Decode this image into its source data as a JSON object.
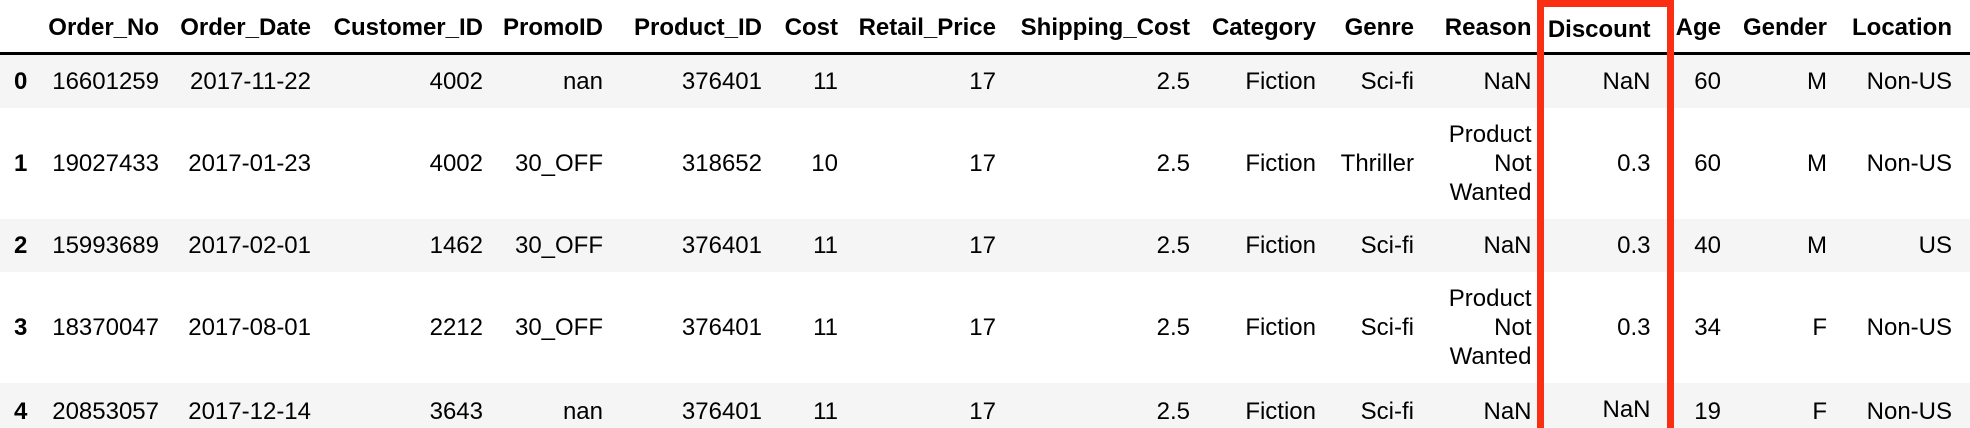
{
  "table": {
    "index_header": "",
    "columns": [
      "Order_No",
      "Order_Date",
      "Customer_ID",
      "PromoID",
      "Product_ID",
      "Cost",
      "Retail_Price",
      "Shipping_Cost",
      "Category",
      "Genre",
      "Reason",
      "Discount",
      "Age",
      "Gender",
      "Location"
    ],
    "rows": [
      {
        "index": "0",
        "cells": [
          "16601259",
          "2017-11-22",
          "4002",
          "nan",
          "376401",
          "11",
          "17",
          "2.5",
          "Fiction",
          "Sci-fi",
          "NaN",
          "NaN",
          "60",
          "M",
          "Non-US"
        ]
      },
      {
        "index": "1",
        "cells": [
          "19027433",
          "2017-01-23",
          "4002",
          "30_OFF",
          "318652",
          "10",
          "17",
          "2.5",
          "Fiction",
          "Thriller",
          "Product Not Wanted",
          "0.3",
          "60",
          "M",
          "Non-US"
        ]
      },
      {
        "index": "2",
        "cells": [
          "15993689",
          "2017-02-01",
          "1462",
          "30_OFF",
          "376401",
          "11",
          "17",
          "2.5",
          "Fiction",
          "Sci-fi",
          "NaN",
          "0.3",
          "40",
          "M",
          "US"
        ]
      },
      {
        "index": "3",
        "cells": [
          "18370047",
          "2017-08-01",
          "2212",
          "30_OFF",
          "376401",
          "11",
          "17",
          "2.5",
          "Fiction",
          "Sci-fi",
          "Product Not Wanted",
          "0.3",
          "34",
          "F",
          "Non-US"
        ]
      },
      {
        "index": "4",
        "cells": [
          "20853057",
          "2017-12-14",
          "3643",
          "nan",
          "376401",
          "11",
          "17",
          "2.5",
          "Fiction",
          "Sci-fi",
          "NaN",
          "NaN",
          "19",
          "F",
          "Non-US"
        ]
      }
    ],
    "highlight": {
      "column": "Discount",
      "color": "#fa2e12"
    }
  },
  "colors": {
    "row_stripe": "#f5f5f5",
    "header_rule": "#000000",
    "text": "#000000",
    "background": "#ffffff",
    "highlight_box": "#fa2e12"
  }
}
